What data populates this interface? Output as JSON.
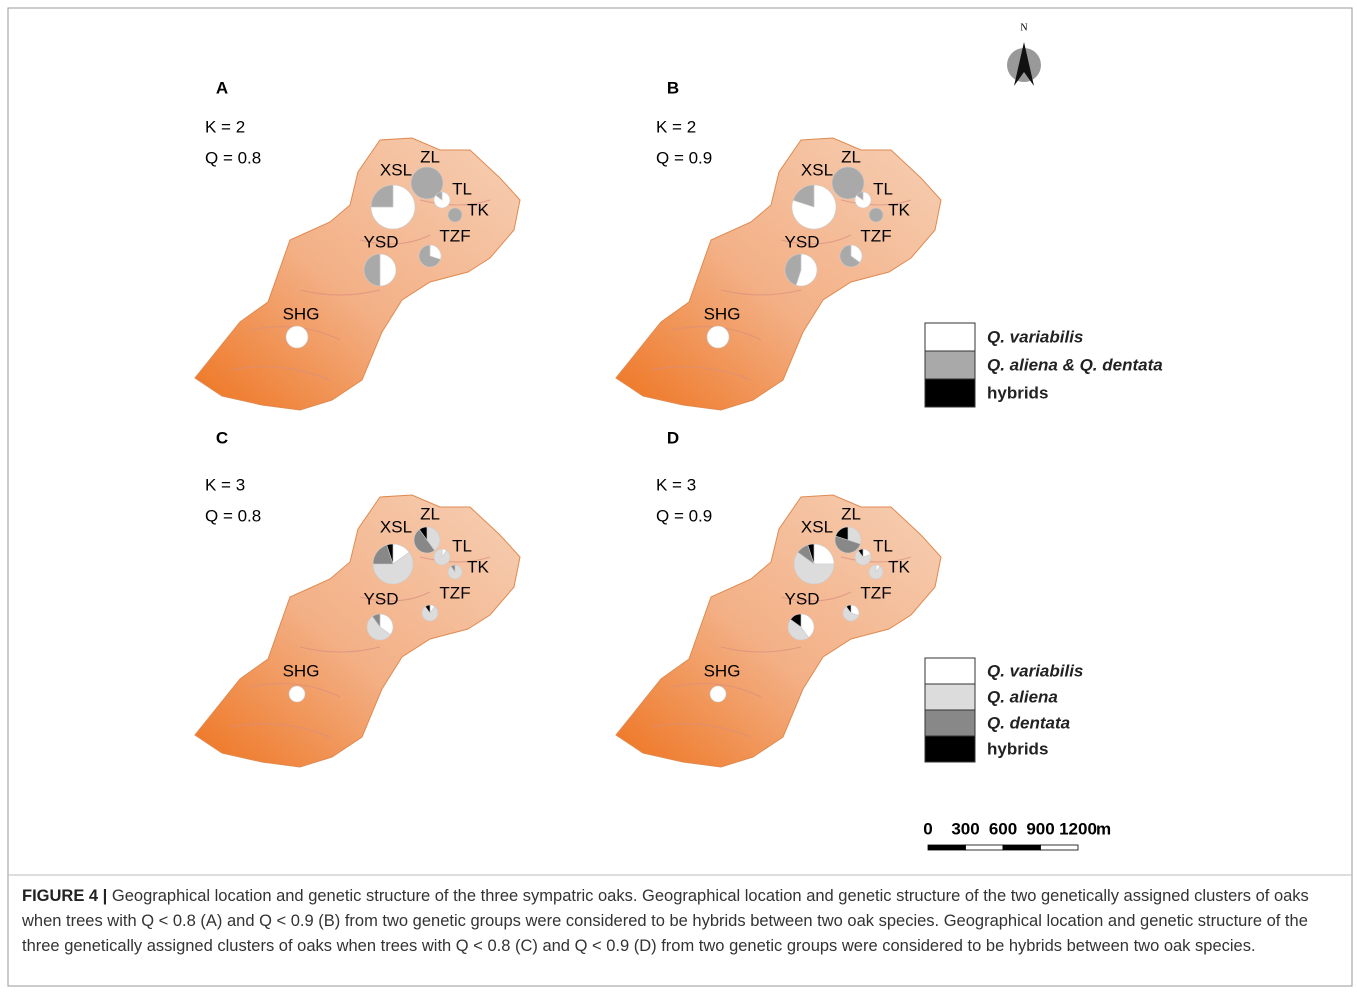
{
  "figure": {
    "north": "N",
    "panels": [
      {
        "letter": "A",
        "k": "K = 2",
        "q": "Q = 0.8",
        "sites": [
          {
            "name": "ZL",
            "values": [
              0,
              100,
              0
            ]
          },
          {
            "name": "XSL",
            "values": [
              75,
              25,
              0
            ]
          },
          {
            "name": "TL",
            "values": [
              85,
              15,
              0
            ]
          },
          {
            "name": "TK",
            "values": [
              0,
              100,
              0
            ]
          },
          {
            "name": "YSD",
            "values": [
              50,
              50,
              0
            ]
          },
          {
            "name": "TZF",
            "values": [
              30,
              70,
              0
            ]
          },
          {
            "name": "SHG",
            "values": [
              100,
              0,
              0
            ]
          }
        ]
      },
      {
        "letter": "B",
        "k": "K = 2",
        "q": "Q = 0.9",
        "sites": [
          {
            "name": "ZL",
            "values": [
              0,
              100,
              0
            ]
          },
          {
            "name": "XSL",
            "values": [
              80,
              20,
              0
            ]
          },
          {
            "name": "TL",
            "values": [
              85,
              15,
              0
            ]
          },
          {
            "name": "TK",
            "values": [
              0,
              100,
              0
            ]
          },
          {
            "name": "YSD",
            "values": [
              55,
              45,
              0
            ]
          },
          {
            "name": "TZF",
            "values": [
              35,
              65,
              0
            ]
          },
          {
            "name": "SHG",
            "values": [
              100,
              0,
              0
            ]
          }
        ]
      },
      {
        "letter": "C",
        "k": "K = 3",
        "q": "Q = 0.8",
        "sites": [
          {
            "name": "ZL",
            "values": [
              0,
              40,
              50,
              10
            ]
          },
          {
            "name": "XSL",
            "values": [
              15,
              60,
              20,
              5
            ]
          },
          {
            "name": "TL",
            "values": [
              10,
              90,
              0,
              0
            ]
          },
          {
            "name": "TK",
            "values": [
              0,
              90,
              10,
              0
            ]
          },
          {
            "name": "YSD",
            "values": [
              35,
              55,
              10,
              0
            ]
          },
          {
            "name": "TZF",
            "values": [
              10,
              80,
              0,
              10
            ]
          },
          {
            "name": "SHG",
            "values": [
              100,
              0,
              0,
              0
            ]
          }
        ]
      },
      {
        "letter": "D",
        "k": "K = 3",
        "q": "Q = 0.9",
        "sites": [
          {
            "name": "ZL",
            "values": [
              0,
              30,
              50,
              20
            ]
          },
          {
            "name": "XSL",
            "values": [
              25,
              60,
              10,
              5
            ]
          },
          {
            "name": "TL",
            "values": [
              20,
              70,
              0,
              10
            ]
          },
          {
            "name": "TK",
            "values": [
              10,
              90,
              0,
              0
            ]
          },
          {
            "name": "YSD",
            "values": [
              40,
              45,
              0,
              15
            ]
          },
          {
            "name": "TZF",
            "values": [
              30,
              60,
              0,
              10
            ]
          },
          {
            "name": "SHG",
            "values": [
              100,
              0,
              0,
              0
            ]
          }
        ]
      }
    ],
    "legends": [
      {
        "items": [
          {
            "label": "Q. variabilis",
            "color": "#ffffff"
          },
          {
            "label": "Q. aliena & Q. dentata",
            "color": "#a9a9a9"
          },
          {
            "label": "hybrids",
            "color": "#000000"
          }
        ]
      },
      {
        "items": [
          {
            "label": "Q. variabilis",
            "color": "#ffffff"
          },
          {
            "label": "Q. aliena",
            "color": "#dcdcdc"
          },
          {
            "label": "Q. dentata",
            "color": "#888888"
          },
          {
            "label": "hybrids",
            "color": "#000000"
          }
        ]
      }
    ],
    "scale": {
      "ticks": [
        0,
        300,
        600,
        900,
        1200
      ],
      "unit": "m"
    },
    "caption": {
      "label": "FIGURE 4 |",
      "text": "Geographical location and genetic structure of the three sympatric oaks. Geographical location and genetic structure of the two genetically assigned clusters of oaks when trees with Q < 0.8 (A) and Q < 0.9 (B) from two genetic groups were considered to be hybrids between two oak species. Geographical location and genetic structure of the three genetically assigned clusters of oaks when trees with Q < 0.8 (C) and Q < 0.9 (D) from two genetic groups were considered to be hybrids between two oak species."
    }
  }
}
